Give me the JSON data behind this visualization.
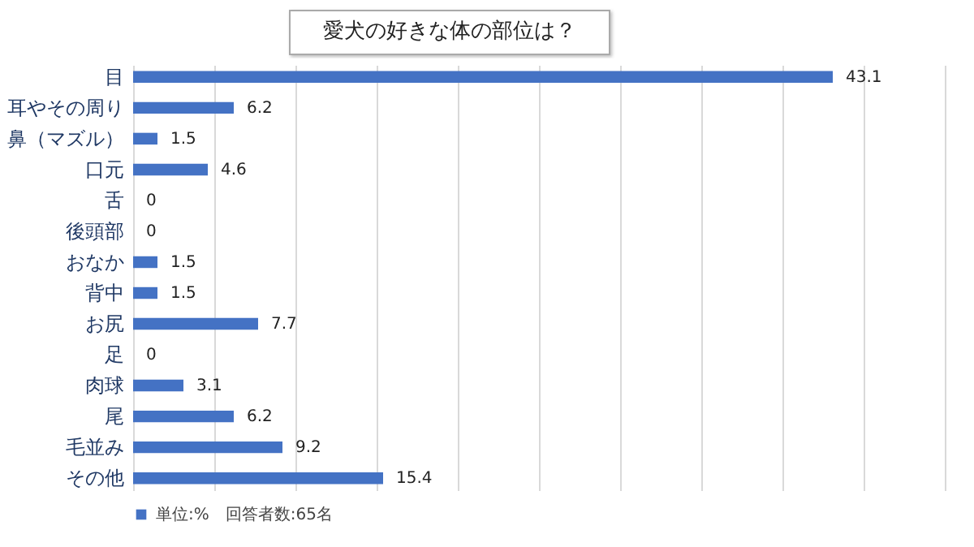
{
  "chart_data": {
    "type": "bar",
    "orientation": "horizontal",
    "title": "愛犬の好きな体の部位は？",
    "categories": [
      "目",
      "耳やその周り",
      "鼻（マズル）",
      "口元",
      "舌",
      "後頭部",
      "おなか",
      "背中",
      "お尻",
      "足",
      "肉球",
      "尾",
      "毛並み",
      "その他"
    ],
    "series": [
      {
        "name": "単位:%　回答者数:65名",
        "color": "#4472c4",
        "values": [
          43.1,
          6.2,
          1.5,
          4.6,
          0,
          0,
          1.5,
          1.5,
          7.7,
          0,
          3.1,
          6.2,
          9.2,
          15.4
        ]
      }
    ],
    "xlim": [
      0,
      50
    ],
    "xticks": [
      {
        "value": 0,
        "label": null
      },
      {
        "value": 5,
        "label": null
      },
      {
        "value": 10,
        "label": null
      },
      {
        "value": 15,
        "label": null
      },
      {
        "value": 20,
        "label": null
      },
      {
        "value": 25,
        "label": null
      },
      {
        "value": 30,
        "label": null
      },
      {
        "value": 35,
        "label": null
      },
      {
        "value": 40,
        "label": null
      },
      {
        "value": 45,
        "label": null
      },
      {
        "value": 50,
        "label": null
      }
    ],
    "grid": "x",
    "tick_labels": "y",
    "data_labels": true,
    "legend": "bottom"
  }
}
